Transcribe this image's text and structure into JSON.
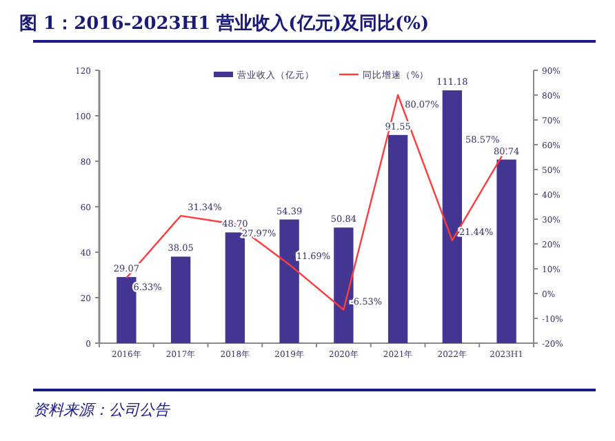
{
  "chart_data": {
    "type": "bar",
    "title": "图 1：2016-2023H1 营业收入(亿元)及同比(%)",
    "categories": [
      "2016年",
      "2017年",
      "2018年",
      "2019年",
      "2020年",
      "2021年",
      "2022年",
      "2023H1"
    ],
    "series": [
      {
        "name": "营业收入（亿元）",
        "color": "#433692",
        "values": [
          29.07,
          38.05,
          48.7,
          54.39,
          50.84,
          91.55,
          111.18,
          80.74
        ],
        "value_labels": [
          "29.07",
          "38.05",
          "48.70",
          "54.39",
          "50.84",
          "91.55",
          "111.18",
          "80.74"
        ]
      },
      {
        "name": "同比增速（%）",
        "type": "line",
        "axis": "y2",
        "color": "#ff3b3b",
        "values": [
          6.33,
          31.34,
          27.97,
          11.69,
          -6.53,
          80.07,
          21.44,
          58.57
        ],
        "value_labels": [
          "6.33%",
          "31.34%",
          "27.97%",
          "11.69%",
          "-6.53%",
          "80.07%",
          "21.44%",
          "58.57%"
        ]
      }
    ],
    "ylim": [
      0,
      120
    ],
    "yticks": [
      0,
      20,
      40,
      60,
      80,
      100,
      120
    ],
    "y2lim": [
      -20,
      90
    ],
    "y2ticks": [
      {
        "value": -20,
        "label": "-20%"
      },
      {
        "value": -10,
        "label": "-10%"
      },
      {
        "value": 0,
        "label": "0%"
      },
      {
        "value": 10,
        "label": "10%"
      },
      {
        "value": 20,
        "label": "20%"
      },
      {
        "value": 30,
        "label": "30%"
      },
      {
        "value": 40,
        "label": "40%"
      },
      {
        "value": 50,
        "label": "50%"
      },
      {
        "value": 60,
        "label": "60%"
      },
      {
        "value": 70,
        "label": "70%"
      },
      {
        "value": 80,
        "label": "80%"
      },
      {
        "value": 90,
        "label": "90%"
      }
    ],
    "legend": "top",
    "annotations": [
      "资料来源：公司公告"
    ]
  }
}
